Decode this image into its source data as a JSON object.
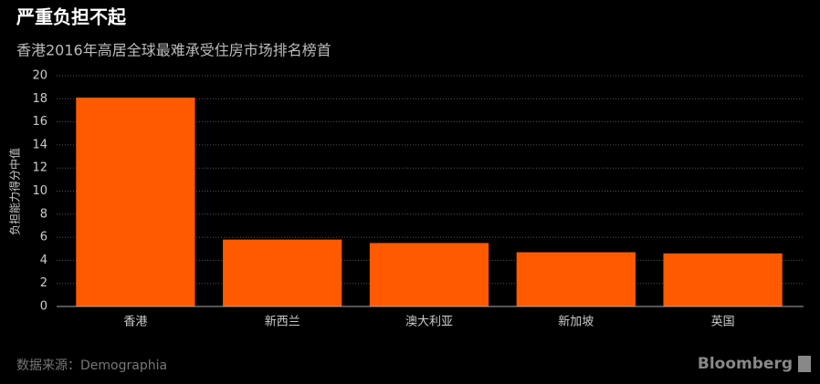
{
  "chart_data": {
    "type": "bar",
    "title": "严重负担不起",
    "subtitle": "香港2016年高居全球最难承受住房市场排名榜首",
    "y_label": "负担能力得分中值",
    "categories": [
      "香港",
      "新西兰",
      "澳大利亚",
      "新加坡",
      "英国"
    ],
    "values": [
      18.1,
      5.8,
      5.5,
      4.7,
      4.6
    ],
    "color": "#ff5a00",
    "ylim": [
      0,
      20
    ],
    "yticks": [
      0,
      2,
      4,
      6,
      8,
      10,
      12,
      14,
      16,
      18,
      20
    ],
    "grid": true,
    "source": "数据来源：Demographia",
    "brand": "Bloomberg"
  }
}
